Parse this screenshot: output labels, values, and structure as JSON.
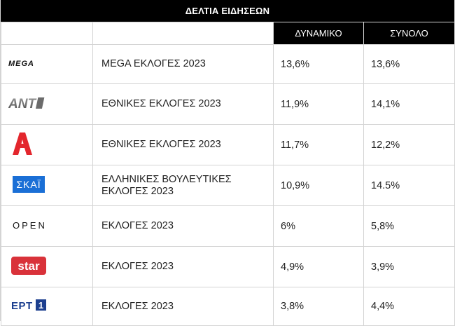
{
  "title": "ΔΕΛΤΙΑ ΕΙΔΗΣΕΩΝ",
  "columns": {
    "dynamic": "ΔΥΝΑΜΙΚΟ",
    "total": "ΣΥΝΟΛΟ"
  },
  "rows": [
    {
      "channel": "MEGA",
      "logo_icon": "mega-logo-icon",
      "program": "MEGA ΕΚΛΟΓΕΣ 2023",
      "dynamic": "13,6%",
      "total": "13,6%"
    },
    {
      "channel": "ANT1",
      "logo_icon": "ant1-logo-icon",
      "program": "ΕΘΝΙΚΕΣ ΕΚΛΟΓΕΣ 2023",
      "dynamic": "11,9%",
      "total": "14,1%"
    },
    {
      "channel": "ALPHA",
      "logo_icon": "alpha-logo-icon",
      "program": "ΕΘΝΙΚΕΣ ΕΚΛΟΓΕΣ 2023",
      "dynamic": "11,7%",
      "total": "12,2%"
    },
    {
      "channel": "ΣΚΑΪ",
      "logo_icon": "skai-logo-icon",
      "program": "ΕΛΛΗΝΙΚΕΣ ΒΟΥΛΕΥΤΙΚΕΣ ΕΚΛΟΓΕΣ 2023",
      "dynamic": "10,9%",
      "total": "14.5%"
    },
    {
      "channel": "OPEN",
      "logo_icon": "open-logo-icon",
      "program": "ΕΚΛΟΓΕΣ 2023",
      "dynamic": "6%",
      "total": "5,8%"
    },
    {
      "channel": "star",
      "logo_icon": "star-logo-icon",
      "program": "ΕΚΛΟΓΕΣ 2023",
      "dynamic": "4,9%",
      "total": "3,9%"
    },
    {
      "channel": "ΕΡΤ 1",
      "logo_icon": "ert1-logo-icon",
      "program": "ΕΚΛΟΓΕΣ 2023",
      "dynamic": "3,8%",
      "total": "4,4%"
    }
  ],
  "colors": {
    "header_bg": "#000000",
    "header_text": "#ffffff",
    "grid": "#d4d4d4",
    "alpha_red": "#e3262d",
    "skai_blue": "#1a6fd6",
    "star_red": "#d9323a",
    "ert_blue": "#1c3f8f"
  }
}
